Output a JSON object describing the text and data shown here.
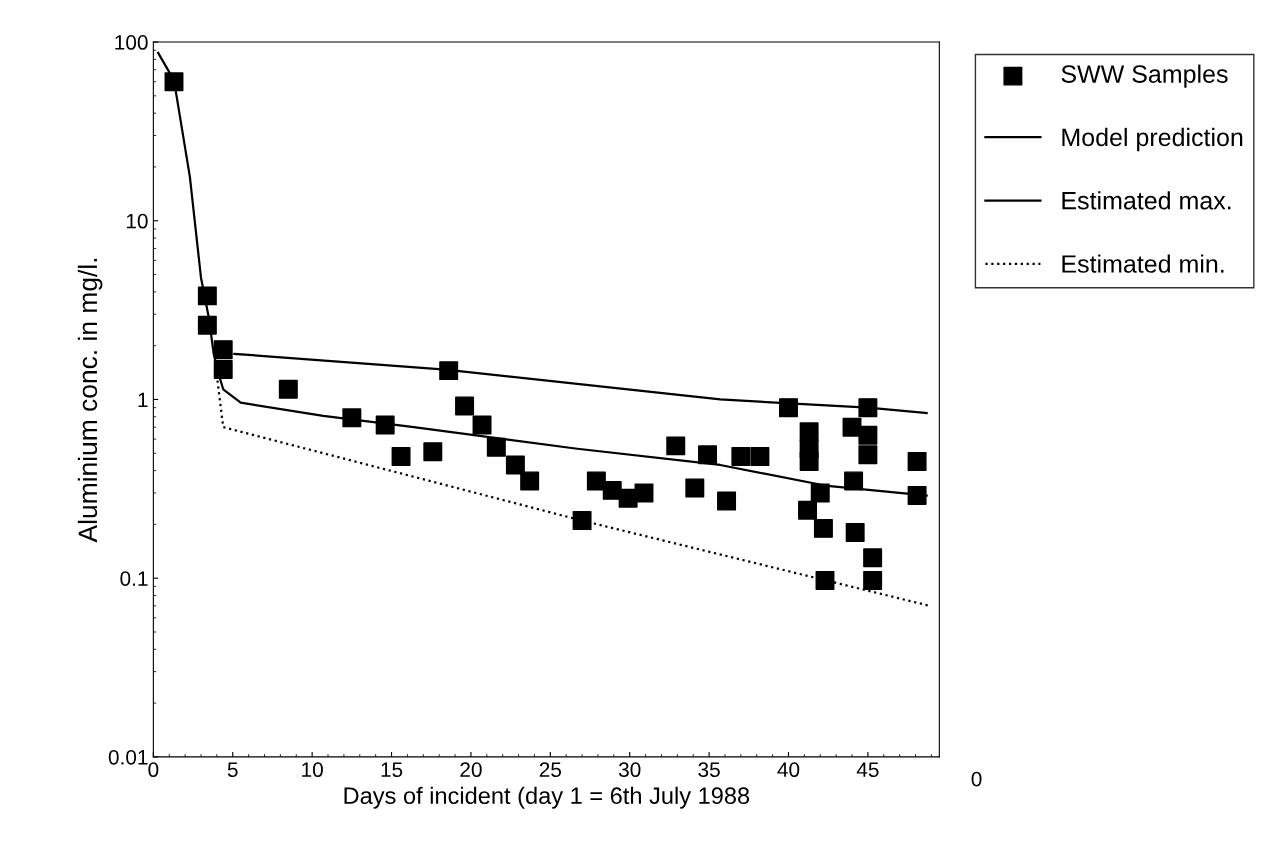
{
  "chart_data": {
    "type": "scatter",
    "xlabel": "Days of incident (day 1 = 6th July 1988",
    "ylabel": "Aluminium conc. in mg/l.",
    "xlim": [
      0,
      49.5
    ],
    "xticks": [
      0,
      5,
      10,
      15,
      20,
      25,
      30,
      35,
      40,
      45
    ],
    "annotations": [
      "0"
    ],
    "ylim": [
      0.01,
      100
    ],
    "yticks": [
      0.01,
      0.1,
      1,
      10,
      100
    ],
    "log": "y",
    "grid": false,
    "legend": "top right",
    "series": [
      {
        "name": "SWW Samples",
        "type": "scatter",
        "marker": "square",
        "color": "#000000",
        "x": [
          1.3,
          3.4,
          3.4,
          4.4,
          4.4,
          8.5,
          12.5,
          14.6,
          15.6,
          17.6,
          18.6,
          19.6,
          20.7,
          21.6,
          22.8,
          23.7,
          27,
          27.9,
          28.9,
          29.9,
          30.9,
          32.9,
          34.1,
          34.9,
          36.1,
          37,
          38.2,
          40,
          41.3,
          41.3,
          41.3,
          42,
          41.2,
          42.2,
          42.3,
          44,
          45,
          45,
          45,
          44.1,
          44.2,
          45.3,
          45.3,
          48.1,
          48.1
        ],
        "values": [
          60,
          3.8,
          2.6,
          1.9,
          1.47,
          1.14,
          0.79,
          0.72,
          0.48,
          0.51,
          1.45,
          0.92,
          0.72,
          0.54,
          0.43,
          0.35,
          0.21,
          0.35,
          0.31,
          0.28,
          0.3,
          0.55,
          0.32,
          0.49,
          0.27,
          0.48,
          0.48,
          0.9,
          0.66,
          0.53,
          0.45,
          0.3,
          0.24,
          0.19,
          0.097,
          0.7,
          0.63,
          0.49,
          0.9,
          0.35,
          0.18,
          0.13,
          0.097,
          0.45,
          0.29
        ]
      },
      {
        "name": "Model prediction",
        "type": "line",
        "line_style": "solid",
        "color": "#000000",
        "x": [
          0.3,
          1.3,
          2.3,
          3,
          3.5,
          3.8,
          4.1,
          4.4,
          5.5,
          10.7,
          16.4,
          26.7,
          35.7,
          42.3,
          48.7
        ],
        "values": [
          87,
          61,
          17.6,
          4.8,
          2.85,
          1.8,
          1.4,
          1.14,
          0.96,
          0.81,
          0.7,
          0.53,
          0.43,
          0.33,
          0.29
        ]
      },
      {
        "name": "Estimated max.",
        "type": "line",
        "line_style": "solid",
        "color": "#000000",
        "x": [
          5.1,
          18.4,
          35.7,
          45,
          48.7
        ],
        "values": [
          1.8,
          1.47,
          1.0,
          0.9,
          0.84
        ]
      },
      {
        "name": "Estimated min.",
        "type": "line",
        "line_style": "dotted",
        "color": "#000000",
        "x": [
          3.9,
          4.4,
          27,
          48.9
        ],
        "values": [
          1.6,
          0.7,
          0.21,
          0.07
        ]
      }
    ]
  }
}
